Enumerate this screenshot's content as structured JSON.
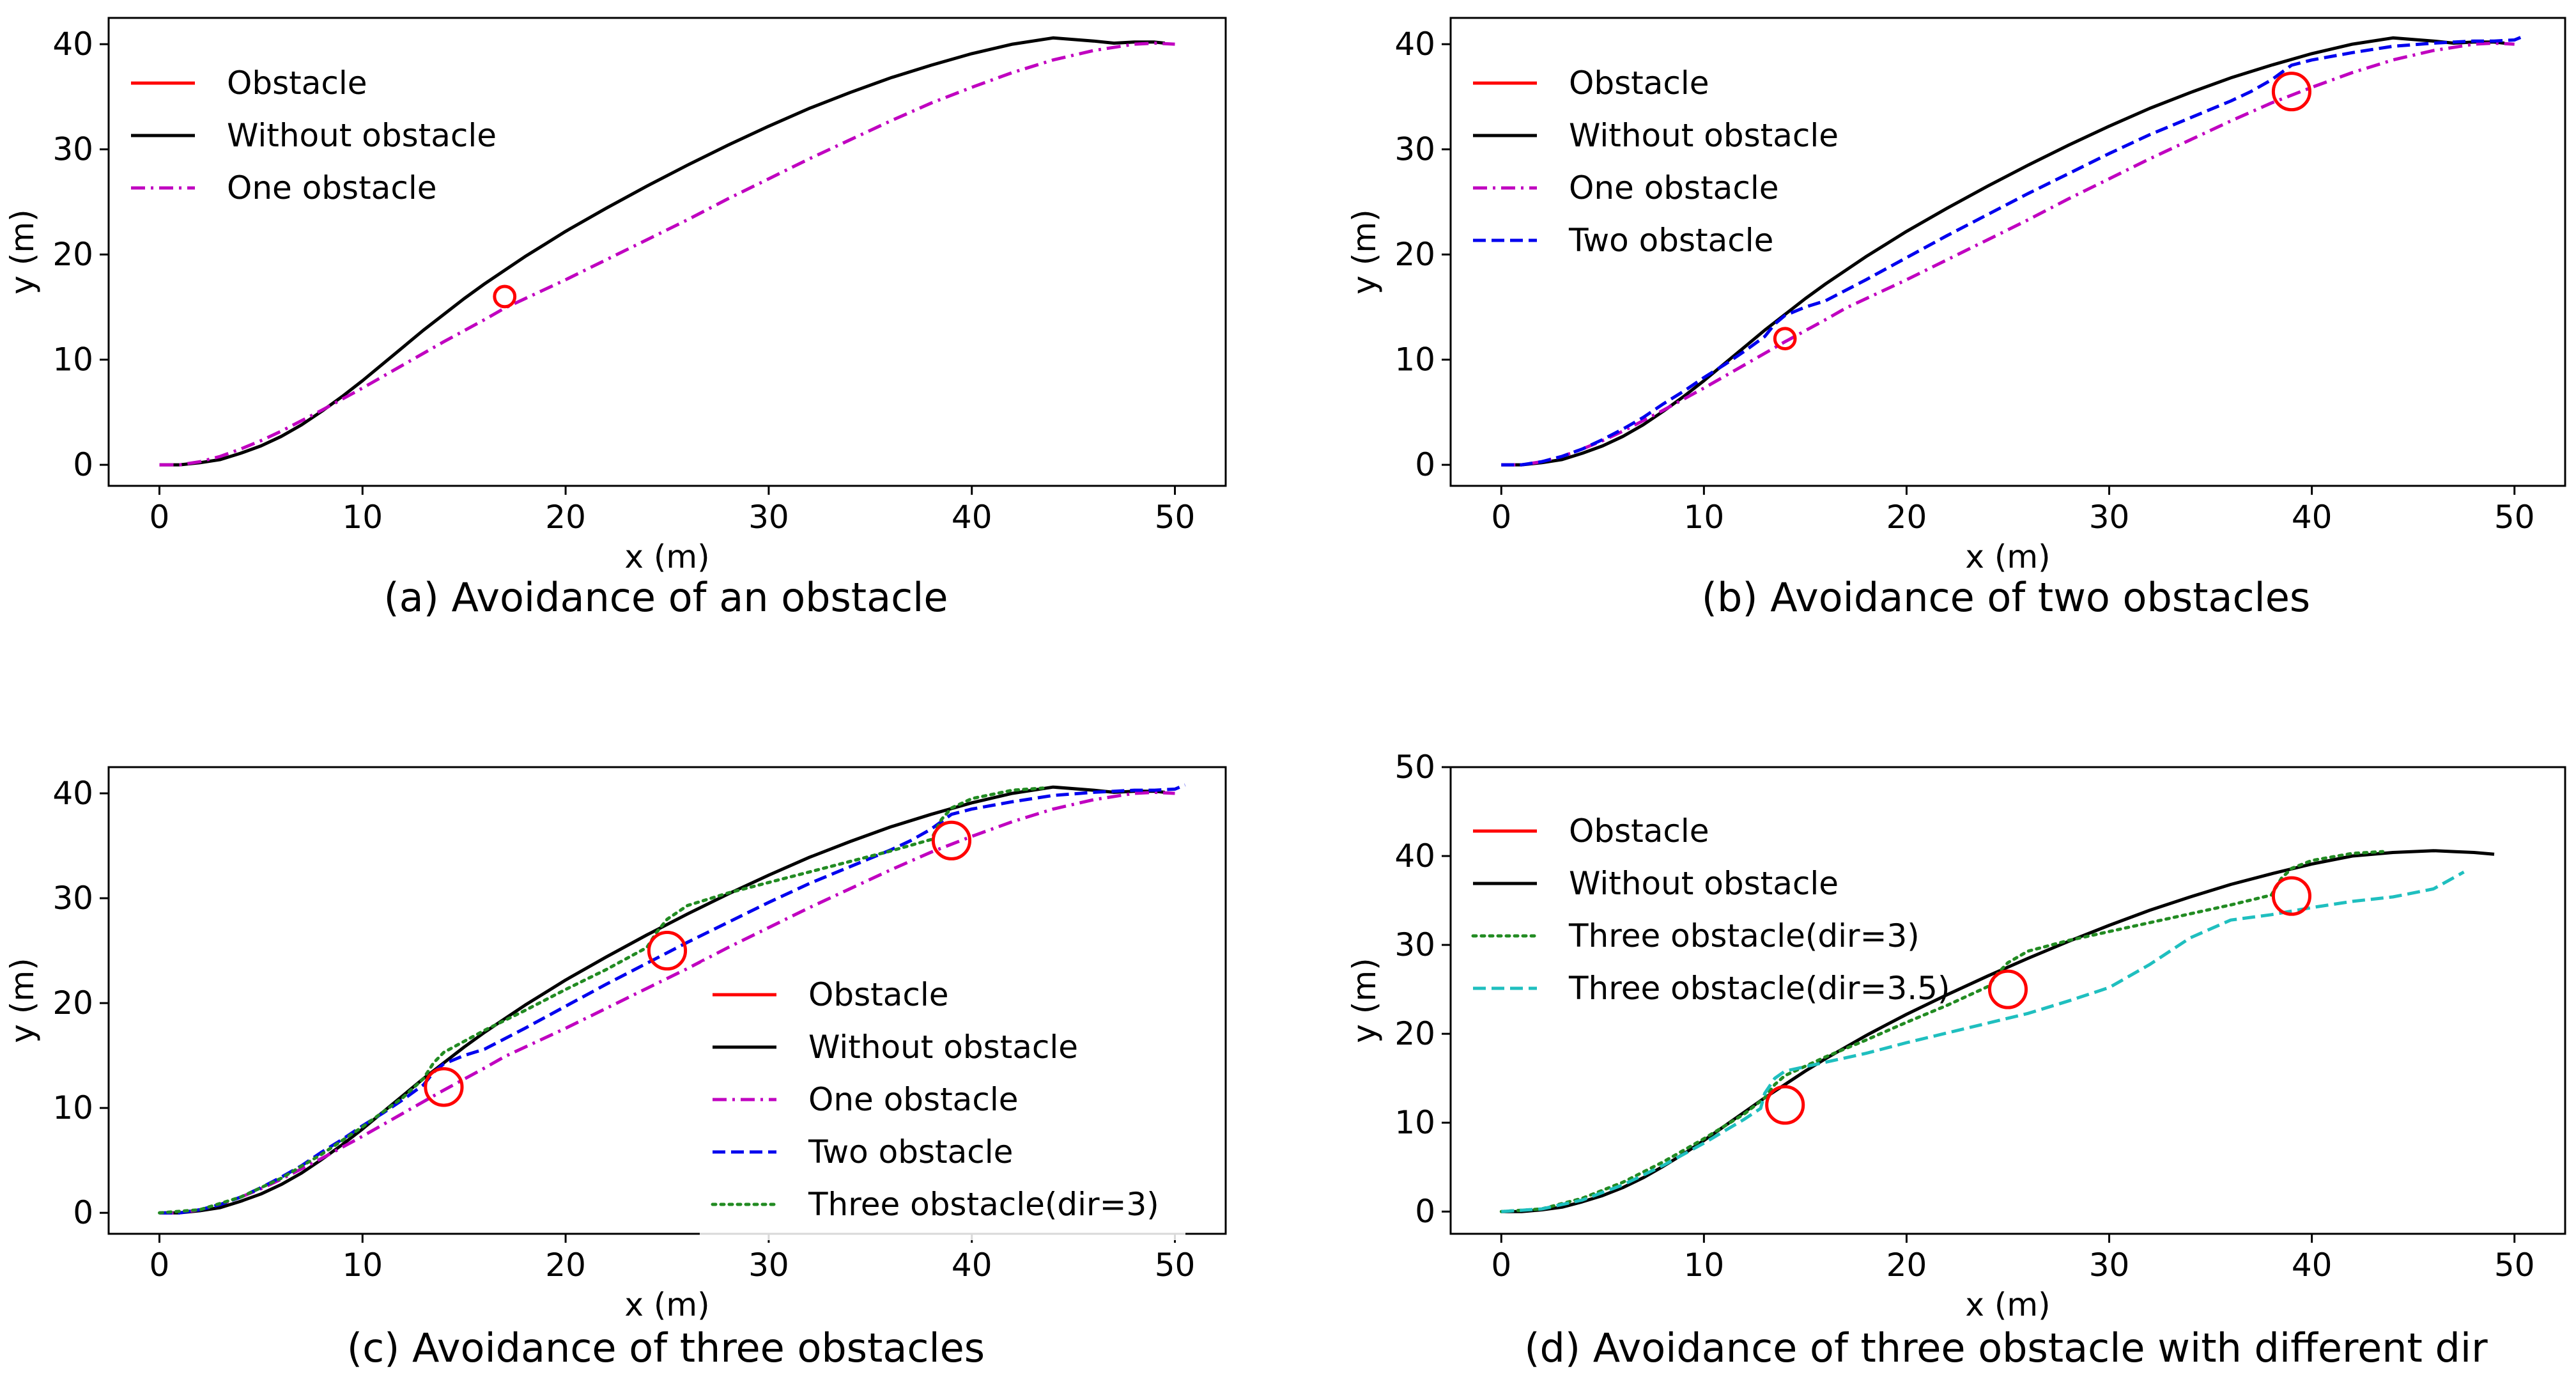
{
  "figure": {
    "panels": [
      {
        "id": "a",
        "caption": "(a) Avoidance of an obstacle"
      },
      {
        "id": "b",
        "caption": "(b) Avoidance of two obstacles"
      },
      {
        "id": "c",
        "caption": "(c) Avoidance of three obstacles"
      },
      {
        "id": "d",
        "caption": "(d) Avoidance of three obstacle with different dir"
      }
    ]
  },
  "chart_data": [
    {
      "type": "line",
      "panel": "a",
      "title": "(a) Avoidance of an obstacle",
      "xlabel": "x (m)",
      "ylabel": "y (m)",
      "xlim": [
        -2.5,
        52.5
      ],
      "ylim": [
        -2,
        42.5
      ],
      "xticks": [
        0,
        10,
        20,
        30,
        40,
        50
      ],
      "yticks": [
        0,
        10,
        20,
        30,
        40
      ],
      "legend_position": "top-left",
      "obstacles": [
        {
          "x": 17,
          "y": 16,
          "r": 0.5
        }
      ],
      "series": [
        {
          "name": "Obstacle",
          "color": "#ff0000",
          "dash": "solid",
          "legend": true,
          "x": [],
          "y": []
        },
        {
          "name": "Without obstacle",
          "color": "#000000",
          "dash": "solid",
          "legend": true,
          "x": [
            0,
            1,
            2,
            3,
            4,
            5,
            6,
            7,
            8,
            9,
            10,
            11,
            12,
            13,
            14,
            15,
            16,
            17,
            18,
            19,
            20,
            22,
            24,
            26,
            28,
            30,
            32,
            34,
            36,
            38,
            40,
            42,
            44,
            46,
            47,
            48,
            49,
            49.5
          ],
          "y": [
            0,
            0,
            0.2,
            0.5,
            1.1,
            1.8,
            2.7,
            3.8,
            5.1,
            6.5,
            8,
            9.6,
            11.2,
            12.8,
            14.3,
            15.8,
            17.2,
            18.5,
            19.8,
            21,
            22.2,
            24.4,
            26.5,
            28.5,
            30.4,
            32.2,
            33.9,
            35.4,
            36.8,
            38,
            39.1,
            40,
            40.6,
            40.3,
            40.1,
            40.2,
            40.2,
            40.1
          ]
        },
        {
          "name": "One obstacle",
          "color": "#c000c0",
          "dash": "dashdot",
          "legend": true,
          "x": [
            0,
            1,
            2,
            3,
            4,
            5,
            6,
            8,
            10,
            12,
            14,
            16,
            17,
            18,
            20,
            22,
            24,
            26,
            28,
            30,
            32,
            34,
            36,
            38,
            40,
            42,
            44,
            46,
            48,
            49,
            50
          ],
          "y": [
            0,
            0,
            0.3,
            0.8,
            1.5,
            2.3,
            3.2,
            5.2,
            7.3,
            9.5,
            11.7,
            13.8,
            14.9,
            15.8,
            17.6,
            19.5,
            21.4,
            23.3,
            25.3,
            27.2,
            29.1,
            30.9,
            32.7,
            34.4,
            35.9,
            37.3,
            38.5,
            39.4,
            40,
            40.1,
            40
          ]
        }
      ]
    },
    {
      "type": "line",
      "panel": "b",
      "title": "(b) Avoidance of two obstacles",
      "xlabel": "x (m)",
      "ylabel": "y (m)",
      "xlim": [
        -2.5,
        52.5
      ],
      "ylim": [
        -2,
        42.5
      ],
      "xticks": [
        0,
        10,
        20,
        30,
        40,
        50
      ],
      "yticks": [
        0,
        10,
        20,
        30,
        40
      ],
      "legend_position": "top-left",
      "obstacles": [
        {
          "x": 14,
          "y": 12,
          "r": 0.5
        },
        {
          "x": 39,
          "y": 35.5,
          "r": 0.9
        }
      ],
      "series": [
        {
          "name": "Obstacle",
          "color": "#ff0000",
          "dash": "solid",
          "legend": true,
          "x": [],
          "y": []
        },
        {
          "name": "Without obstacle",
          "color": "#000000",
          "dash": "solid",
          "legend": true,
          "x": [
            0,
            1,
            2,
            3,
            4,
            5,
            6,
            7,
            8,
            9,
            10,
            11,
            12,
            13,
            14,
            15,
            16,
            17,
            18,
            19,
            20,
            22,
            24,
            26,
            28,
            30,
            32,
            34,
            36,
            38,
            40,
            42,
            44,
            46,
            47,
            48,
            49,
            49.5
          ],
          "y": [
            0,
            0,
            0.2,
            0.5,
            1.1,
            1.8,
            2.7,
            3.8,
            5.1,
            6.5,
            8,
            9.6,
            11.2,
            12.8,
            14.3,
            15.8,
            17.2,
            18.5,
            19.8,
            21,
            22.2,
            24.4,
            26.5,
            28.5,
            30.4,
            32.2,
            33.9,
            35.4,
            36.8,
            38,
            39.1,
            40,
            40.6,
            40.3,
            40.1,
            40.2,
            40.2,
            40.1
          ]
        },
        {
          "name": "One obstacle",
          "color": "#c000c0",
          "dash": "dashdot",
          "legend": true,
          "x": [
            0,
            1,
            2,
            3,
            4,
            5,
            6,
            8,
            10,
            12,
            14,
            16,
            17,
            18,
            20,
            22,
            24,
            26,
            28,
            30,
            32,
            34,
            36,
            38,
            40,
            42,
            44,
            46,
            48,
            49,
            50
          ],
          "y": [
            0,
            0,
            0.3,
            0.8,
            1.5,
            2.3,
            3.2,
            5.2,
            7.3,
            9.5,
            11.7,
            13.8,
            14.9,
            15.8,
            17.6,
            19.5,
            21.4,
            23.3,
            25.3,
            27.2,
            29.1,
            30.9,
            32.7,
            34.4,
            35.9,
            37.3,
            38.5,
            39.4,
            40,
            40.1,
            40
          ]
        },
        {
          "name": "Two obstacle",
          "color": "#0000ee",
          "dash": "dashed",
          "legend": true,
          "x": [
            0,
            1,
            2,
            3,
            4,
            5,
            6,
            7,
            8,
            9,
            10,
            11,
            12,
            13,
            13.5,
            14,
            15,
            16,
            18,
            20,
            22,
            24,
            26,
            28,
            30,
            32,
            34,
            36,
            37,
            38,
            39,
            40,
            42,
            44,
            46,
            48,
            49,
            50,
            50.5
          ],
          "y": [
            0,
            0,
            0.3,
            0.8,
            1.5,
            2.4,
            3.4,
            4.5,
            5.8,
            7,
            8.3,
            9.5,
            10.8,
            12.2,
            13.4,
            14.2,
            15,
            15.6,
            17.6,
            19.7,
            21.8,
            23.8,
            25.8,
            27.7,
            29.6,
            31.4,
            33,
            34.6,
            35.5,
            36.6,
            38,
            38.5,
            39.2,
            39.8,
            40.1,
            40.3,
            40.3,
            40.4,
            40.8
          ]
        }
      ]
    },
    {
      "type": "line",
      "panel": "c",
      "title": "(c) Avoidance of three obstacles",
      "xlabel": "x (m)",
      "ylabel": "y (m)",
      "xlim": [
        -2.5,
        52.5
      ],
      "ylim": [
        -2,
        42.5
      ],
      "xticks": [
        0,
        10,
        20,
        30,
        40,
        50
      ],
      "yticks": [
        0,
        10,
        20,
        30,
        40
      ],
      "legend_position": "center-right",
      "obstacles": [
        {
          "x": 14,
          "y": 12,
          "r": 0.9
        },
        {
          "x": 25,
          "y": 25,
          "r": 0.9
        },
        {
          "x": 39,
          "y": 35.5,
          "r": 0.9
        }
      ],
      "series": [
        {
          "name": "Obstacle",
          "color": "#ff0000",
          "dash": "solid",
          "legend": true,
          "x": [],
          "y": []
        },
        {
          "name": "Without obstacle",
          "color": "#000000",
          "dash": "solid",
          "legend": true,
          "x": [
            0,
            1,
            2,
            3,
            4,
            5,
            6,
            7,
            8,
            9,
            10,
            11,
            12,
            13,
            14,
            15,
            16,
            17,
            18,
            19,
            20,
            22,
            24,
            26,
            28,
            30,
            32,
            34,
            36,
            38,
            40,
            42,
            44,
            46,
            47,
            48,
            49,
            49.5
          ],
          "y": [
            0,
            0,
            0.2,
            0.5,
            1.1,
            1.8,
            2.7,
            3.8,
            5.1,
            6.5,
            8,
            9.6,
            11.2,
            12.8,
            14.3,
            15.8,
            17.2,
            18.5,
            19.8,
            21,
            22.2,
            24.4,
            26.5,
            28.5,
            30.4,
            32.2,
            33.9,
            35.4,
            36.8,
            38,
            39.1,
            40,
            40.6,
            40.3,
            40.1,
            40.2,
            40.2,
            40.1
          ]
        },
        {
          "name": "One obstacle",
          "color": "#c000c0",
          "dash": "dashdot",
          "legend": true,
          "x": [
            0,
            1,
            2,
            3,
            4,
            5,
            6,
            8,
            10,
            12,
            14,
            16,
            17,
            18,
            20,
            22,
            24,
            26,
            28,
            30,
            32,
            34,
            36,
            38,
            40,
            42,
            44,
            46,
            48,
            49,
            50
          ],
          "y": [
            0,
            0,
            0.3,
            0.8,
            1.5,
            2.3,
            3.2,
            5.2,
            7.3,
            9.5,
            11.7,
            13.8,
            14.9,
            15.8,
            17.6,
            19.5,
            21.4,
            23.3,
            25.3,
            27.2,
            29.1,
            30.9,
            32.7,
            34.4,
            35.9,
            37.3,
            38.5,
            39.4,
            40,
            40.1,
            40
          ]
        },
        {
          "name": "Two obstacle",
          "color": "#0000ee",
          "dash": "dashed",
          "legend": true,
          "x": [
            0,
            1,
            2,
            3,
            4,
            5,
            6,
            7,
            8,
            9,
            10,
            11,
            12,
            13,
            13.5,
            14,
            15,
            16,
            18,
            20,
            22,
            24,
            26,
            28,
            30,
            32,
            34,
            36,
            37,
            38,
            39,
            40,
            42,
            44,
            46,
            48,
            49,
            50,
            50.5
          ],
          "y": [
            0,
            0,
            0.3,
            0.8,
            1.5,
            2.4,
            3.4,
            4.5,
            5.8,
            7,
            8.3,
            9.5,
            10.8,
            12.2,
            13.4,
            14.2,
            15,
            15.6,
            17.6,
            19.7,
            21.8,
            23.8,
            25.8,
            27.7,
            29.6,
            31.4,
            33,
            34.6,
            35.5,
            36.6,
            38,
            38.5,
            39.2,
            39.8,
            40.1,
            40.3,
            40.3,
            40.4,
            40.8
          ]
        },
        {
          "name": "Three obstacle(dir=3)",
          "color": "#228b22",
          "dash": "dotted",
          "legend": true,
          "x": [
            0,
            2,
            4,
            6,
            8,
            10,
            12,
            13,
            13.5,
            14,
            16,
            18,
            20,
            22,
            24,
            24.5,
            25,
            26,
            28,
            30,
            32,
            34,
            36,
            38,
            38.5,
            39,
            40,
            42,
            43.5
          ],
          "y": [
            0,
            0.3,
            1.5,
            3.3,
            5.6,
            8.2,
            11,
            12.8,
            14.3,
            15.3,
            17.4,
            19.3,
            21.3,
            23.2,
            25.3,
            26.8,
            28,
            29.3,
            30.5,
            31.5,
            32.5,
            33.5,
            34.5,
            35.6,
            37.5,
            38.6,
            39.5,
            40.3,
            40.5
          ]
        }
      ]
    },
    {
      "type": "line",
      "panel": "d",
      "title": "(d) Avoidance of three obstacle with different dir",
      "xlabel": "x (m)",
      "ylabel": "y (m)",
      "xlim": [
        -2.5,
        52.5
      ],
      "ylim": [
        -2.5,
        50
      ],
      "xticks": [
        0,
        10,
        20,
        30,
        40,
        50
      ],
      "yticks": [
        0,
        10,
        20,
        30,
        40,
        50
      ],
      "legend_position": "top-left",
      "obstacles": [
        {
          "x": 14,
          "y": 12,
          "r": 0.9
        },
        {
          "x": 25,
          "y": 25,
          "r": 0.9
        },
        {
          "x": 39,
          "y": 35.5,
          "r": 0.9
        }
      ],
      "series": [
        {
          "name": "Obstacle",
          "color": "#ff0000",
          "dash": "solid",
          "legend": true,
          "x": [],
          "y": []
        },
        {
          "name": "Without obstacle",
          "color": "#000000",
          "dash": "solid",
          "legend": true,
          "x": [
            0,
            1,
            2,
            3,
            4,
            5,
            6,
            7,
            8,
            9,
            10,
            11,
            12,
            13,
            14,
            15,
            16,
            17,
            18,
            19,
            20,
            22,
            24,
            26,
            28,
            30,
            32,
            34,
            36,
            38,
            40,
            42,
            44,
            46,
            47,
            48,
            49
          ],
          "y": [
            0,
            0,
            0.2,
            0.5,
            1.1,
            1.8,
            2.7,
            3.8,
            5.1,
            6.5,
            8,
            9.6,
            11.2,
            12.8,
            14.3,
            15.8,
            17.2,
            18.5,
            19.8,
            21,
            22.2,
            24.4,
            26.5,
            28.5,
            30.4,
            32.2,
            33.9,
            35.4,
            36.8,
            38,
            39.1,
            40,
            40.4,
            40.6,
            40.5,
            40.4,
            40.2
          ]
        },
        {
          "name": "Three obstacle(dir=3)",
          "color": "#228b22",
          "dash": "dotted",
          "legend": true,
          "x": [
            0,
            2,
            4,
            6,
            8,
            10,
            12,
            13,
            13.5,
            14,
            16,
            18,
            20,
            22,
            24,
            24.5,
            25,
            26,
            28,
            30,
            32,
            34,
            36,
            38,
            38.5,
            39,
            40,
            42,
            43.5
          ],
          "y": [
            0,
            0.3,
            1.5,
            3.3,
            5.6,
            8.2,
            11,
            12.8,
            14.3,
            15.3,
            17.4,
            19.3,
            21.3,
            23.2,
            25.3,
            26.8,
            28,
            29.3,
            30.5,
            31.5,
            32.5,
            33.5,
            34.5,
            35.6,
            37.5,
            38.6,
            39.5,
            40.3,
            40.5
          ]
        },
        {
          "name": "Three obstacle(dir=3.5)",
          "color": "#1fbfbf",
          "dash": "dashed",
          "legend": true,
          "x": [
            0,
            2,
            4,
            6,
            8,
            10,
            12,
            12.8,
            13,
            13.5,
            14,
            16,
            18,
            20,
            22,
            24,
            26,
            28,
            30,
            32,
            34,
            36,
            38,
            40,
            42,
            44,
            46,
            47.5
          ],
          "y": [
            0,
            0.3,
            1.3,
            3,
            5.2,
            7.7,
            10.4,
            11.6,
            13.3,
            15,
            15.8,
            16.8,
            17.8,
            19,
            20.1,
            21.2,
            22.3,
            23.7,
            25.2,
            27.8,
            30.8,
            32.8,
            33.4,
            34.2,
            34.9,
            35.4,
            36.3,
            38.2
          ]
        }
      ]
    }
  ]
}
